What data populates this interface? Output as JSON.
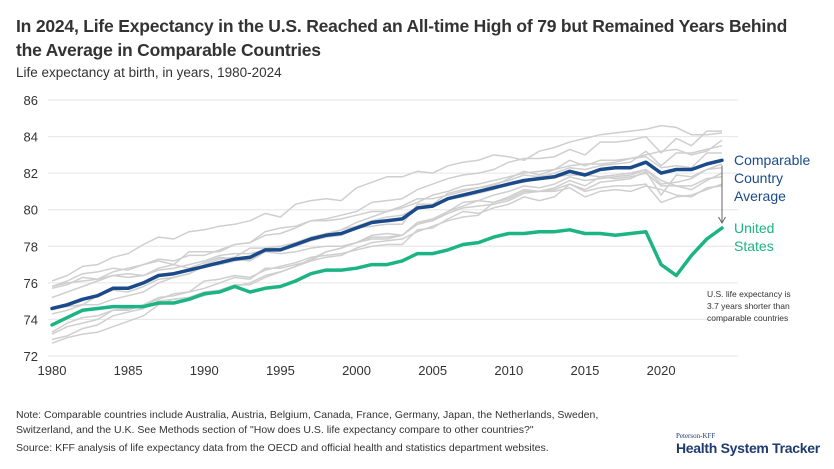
{
  "header": {
    "title": "In 2024, Life Expectancy in the U.S. Reached an All-time High of 79 but Remained Years Behind the Average in Comparable Countries",
    "subtitle": "Life expectancy at birth, in years, 1980-2024"
  },
  "chart_data": {
    "type": "line",
    "title": "In 2024, Life Expectancy in the U.S. Reached an All-time High of 79 but Remained Years Behind the Average in Comparable Countries",
    "subtitle": "Life expectancy at birth, in years, 1980-2024",
    "xlabel": "",
    "ylabel": "Life expectancy at birth, in years",
    "xlim": [
      1980,
      2024
    ],
    "ylim": [
      72,
      86
    ],
    "yticks": [
      72,
      74,
      76,
      78,
      80,
      82,
      84,
      86
    ],
    "xticks": [
      1980,
      1985,
      1990,
      1995,
      2000,
      2005,
      2010,
      2015,
      2020
    ],
    "grid": true,
    "x": [
      1980,
      1981,
      1982,
      1983,
      1984,
      1985,
      1986,
      1987,
      1988,
      1989,
      1990,
      1991,
      1992,
      1993,
      1994,
      1995,
      1996,
      1997,
      1998,
      1999,
      2000,
      2001,
      2002,
      2003,
      2004,
      2005,
      2006,
      2007,
      2008,
      2009,
      2010,
      2011,
      2012,
      2013,
      2014,
      2015,
      2016,
      2017,
      2018,
      2019,
      2020,
      2021,
      2022,
      2023,
      2024
    ],
    "series": [
      {
        "name": "Comparable Country Average",
        "color": "#1a4a8a",
        "highlight": true,
        "values": [
          74.6,
          74.8,
          75.1,
          75.3,
          75.7,
          75.7,
          76.0,
          76.4,
          76.5,
          76.7,
          76.9,
          77.1,
          77.3,
          77.4,
          77.8,
          77.8,
          78.1,
          78.4,
          78.6,
          78.7,
          79.0,
          79.3,
          79.4,
          79.5,
          80.1,
          80.2,
          80.6,
          80.8,
          81.0,
          81.2,
          81.4,
          81.6,
          81.7,
          81.8,
          82.1,
          81.9,
          82.2,
          82.3,
          82.3,
          82.6,
          82.0,
          82.2,
          82.2,
          82.5,
          82.7
        ]
      },
      {
        "name": "United States",
        "color": "#1bb482",
        "highlight": true,
        "values": [
          73.7,
          74.1,
          74.5,
          74.6,
          74.7,
          74.7,
          74.7,
          74.9,
          74.9,
          75.1,
          75.4,
          75.5,
          75.8,
          75.5,
          75.7,
          75.8,
          76.1,
          76.5,
          76.7,
          76.7,
          76.8,
          77.0,
          77.0,
          77.2,
          77.6,
          77.6,
          77.8,
          78.1,
          78.2,
          78.5,
          78.7,
          78.7,
          78.8,
          78.8,
          78.9,
          78.7,
          78.7,
          78.6,
          78.7,
          78.8,
          77.0,
          76.4,
          77.5,
          78.4,
          79.0
        ]
      },
      {
        "name": "Japan",
        "color": "#cfcfcf",
        "values": [
          76.1,
          76.4,
          76.9,
          77.0,
          77.4,
          77.6,
          78.1,
          78.5,
          78.4,
          78.8,
          78.9,
          79.1,
          79.2,
          79.4,
          79.8,
          79.6,
          80.3,
          80.5,
          80.6,
          80.5,
          81.2,
          81.5,
          81.8,
          81.8,
          82.1,
          82.0,
          82.4,
          82.6,
          82.7,
          83.0,
          82.9,
          82.7,
          83.2,
          83.4,
          83.7,
          83.9,
          84.1,
          84.2,
          84.3,
          84.4,
          84.6,
          84.5,
          84.1,
          84.1,
          84.2
        ]
      },
      {
        "name": "Switzerland",
        "color": "#cfcfcf",
        "values": [
          75.7,
          75.9,
          76.3,
          76.2,
          76.6,
          76.8,
          77.0,
          77.3,
          77.2,
          77.5,
          77.5,
          77.8,
          78.1,
          78.2,
          78.6,
          78.7,
          79.0,
          79.4,
          79.5,
          79.7,
          79.9,
          80.4,
          80.5,
          80.6,
          81.1,
          81.4,
          81.7,
          81.9,
          82.0,
          82.2,
          82.6,
          82.8,
          82.8,
          82.9,
          83.3,
          83.0,
          83.7,
          83.7,
          83.8,
          84.0,
          83.1,
          83.9,
          83.5,
          84.3,
          84.3
        ]
      },
      {
        "name": "Sweden",
        "color": "#cfcfcf",
        "values": [
          75.8,
          76.1,
          76.5,
          76.6,
          76.8,
          76.7,
          77.0,
          77.2,
          77.0,
          77.7,
          77.7,
          77.7,
          78.1,
          78.2,
          78.8,
          79.0,
          79.1,
          79.4,
          79.4,
          79.5,
          79.7,
          79.9,
          79.9,
          80.2,
          80.6,
          80.6,
          80.8,
          81.0,
          81.2,
          81.4,
          81.6,
          81.9,
          81.8,
          82.0,
          82.3,
          82.2,
          82.4,
          82.5,
          82.6,
          83.2,
          82.4,
          83.1,
          83.1,
          83.3,
          83.5
        ]
      },
      {
        "name": "Australia",
        "color": "#cfcfcf",
        "values": [
          74.6,
          74.7,
          74.8,
          75.3,
          75.6,
          75.5,
          75.8,
          76.2,
          76.3,
          76.5,
          77.0,
          77.3,
          77.4,
          77.9,
          77.9,
          78.0,
          78.2,
          78.5,
          78.7,
          78.9,
          79.3,
          79.6,
          79.9,
          80.1,
          80.4,
          80.8,
          81.0,
          81.3,
          81.4,
          81.6,
          81.8,
          82.0,
          82.1,
          82.2,
          82.4,
          82.5,
          82.5,
          82.6,
          82.8,
          83.0,
          83.2,
          83.3,
          83.0,
          83.2,
          83.8
        ]
      },
      {
        "name": "France",
        "color": "#cfcfcf",
        "values": [
          74.3,
          74.5,
          74.8,
          74.8,
          75.1,
          75.3,
          75.5,
          76.0,
          76.3,
          76.5,
          76.9,
          77.0,
          77.2,
          77.3,
          77.7,
          77.8,
          78.0,
          78.3,
          78.5,
          78.6,
          79.0,
          79.1,
          79.2,
          79.2,
          80.3,
          80.3,
          80.9,
          81.1,
          81.2,
          81.3,
          81.7,
          82.1,
          81.9,
          82.2,
          82.7,
          82.4,
          82.7,
          82.7,
          82.8,
          82.9,
          82.3,
          82.4,
          82.3,
          83.1,
          83.1
        ]
      },
      {
        "name": "Canada",
        "color": "#cfcfcf",
        "values": [
          75.2,
          75.5,
          75.8,
          76.1,
          76.4,
          76.3,
          76.4,
          76.7,
          76.8,
          77.0,
          77.2,
          77.5,
          77.6,
          77.6,
          77.8,
          77.9,
          78.1,
          78.4,
          78.6,
          78.9,
          79.1,
          79.4,
          79.6,
          79.7,
          80.1,
          80.2,
          80.6,
          80.7,
          80.9,
          81.1,
          81.4,
          81.5,
          81.7,
          81.8,
          81.9,
          81.9,
          81.8,
          81.9,
          82.0,
          82.2,
          81.6,
          81.3,
          81.3,
          81.7,
          81.8
        ]
      },
      {
        "name": "Netherlands",
        "color": "#cfcfcf",
        "values": [
          75.8,
          76.0,
          76.1,
          76.2,
          76.4,
          76.5,
          76.4,
          76.8,
          77.0,
          76.8,
          77.1,
          77.4,
          77.3,
          77.2,
          77.7,
          77.6,
          77.7,
          77.9,
          78.0,
          78.0,
          78.2,
          78.4,
          78.4,
          78.6,
          79.3,
          79.5,
          79.9,
          80.4,
          80.5,
          80.8,
          81.0,
          81.3,
          81.2,
          81.4,
          81.8,
          81.6,
          81.7,
          81.8,
          81.9,
          82.2,
          81.4,
          81.5,
          81.7,
          82.2,
          82.3
        ]
      },
      {
        "name": "Austria",
        "color": "#cfcfcf",
        "values": [
          72.7,
          73.0,
          73.2,
          73.3,
          73.6,
          73.9,
          74.2,
          74.8,
          75.1,
          75.2,
          75.5,
          75.6,
          75.8,
          76.0,
          76.4,
          76.6,
          76.9,
          77.2,
          77.7,
          77.9,
          78.2,
          78.6,
          78.7,
          78.6,
          79.3,
          79.4,
          79.9,
          80.2,
          80.5,
          80.4,
          80.7,
          81.1,
          81.0,
          81.2,
          81.6,
          81.3,
          81.8,
          81.7,
          81.8,
          82.0,
          81.3,
          81.3,
          81.1,
          81.6,
          82.0
        ]
      },
      {
        "name": "Belgium",
        "color": "#cfcfcf",
        "values": [
          73.3,
          73.8,
          74.1,
          74.2,
          74.5,
          74.5,
          74.8,
          75.1,
          75.4,
          75.5,
          76.1,
          76.2,
          76.4,
          76.3,
          76.7,
          76.9,
          77.1,
          77.4,
          77.5,
          77.6,
          77.8,
          78.0,
          78.1,
          78.1,
          78.9,
          79.0,
          79.5,
          79.9,
          79.8,
          80.1,
          80.3,
          80.7,
          80.5,
          80.7,
          81.4,
          81.1,
          81.5,
          81.6,
          81.7,
          82.1,
          80.8,
          81.9,
          81.8,
          82.2,
          82.5
        ]
      },
      {
        "name": "Germany",
        "color": "#cfcfcf",
        "values": [
          72.9,
          73.1,
          73.5,
          73.7,
          74.2,
          74.4,
          74.6,
          75.0,
          75.1,
          75.2,
          75.3,
          75.6,
          75.9,
          75.9,
          76.3,
          76.6,
          76.9,
          77.3,
          77.7,
          77.9,
          78.2,
          78.5,
          78.5,
          78.6,
          79.2,
          79.4,
          79.8,
          80.1,
          80.2,
          80.3,
          80.5,
          80.9,
          81.0,
          81.0,
          81.2,
          80.7,
          81.0,
          81.1,
          81.0,
          81.3,
          81.1,
          80.8,
          80.7,
          81.2,
          81.3
        ]
      },
      {
        "name": "United Kingdom",
        "color": "#cfcfcf",
        "values": [
          73.2,
          73.6,
          73.8,
          74.0,
          74.5,
          74.6,
          74.8,
          75.2,
          75.3,
          75.5,
          75.7,
          76.0,
          76.3,
          76.2,
          76.8,
          76.8,
          77.0,
          77.2,
          77.4,
          77.5,
          77.9,
          78.2,
          78.3,
          78.4,
          78.8,
          79.1,
          79.4,
          79.6,
          79.7,
          80.4,
          80.6,
          81.0,
          81.0,
          81.1,
          81.4,
          81.0,
          81.2,
          81.3,
          81.3,
          81.4,
          80.4,
          80.7,
          80.8,
          81.1,
          81.4
        ]
      }
    ],
    "labels": {
      "average": [
        "Comparable",
        "Country",
        "Average"
      ],
      "us": [
        "United",
        "States"
      ]
    },
    "annotation": {
      "lines": [
        "U.S. life expectancy is",
        "3.7 years shorter than",
        "comparable countries"
      ],
      "gap_years": 3.7
    }
  },
  "footer": {
    "note_line1": "Note: Comparable countries include Australia, Austria, Belgium, Canada, France, Germany, Japan, the Netherlands, Sweden,",
    "note_line2": "Switzerland, and the U.K. See Methods section of \"How does U.S. life expectancy compare to other countries?\"",
    "source": "Source: KFF analysis of life expectancy data from the OECD and official health and statistics department websites.",
    "logo_small": "Peterson-KFF",
    "logo_big": "Health System Tracker"
  }
}
